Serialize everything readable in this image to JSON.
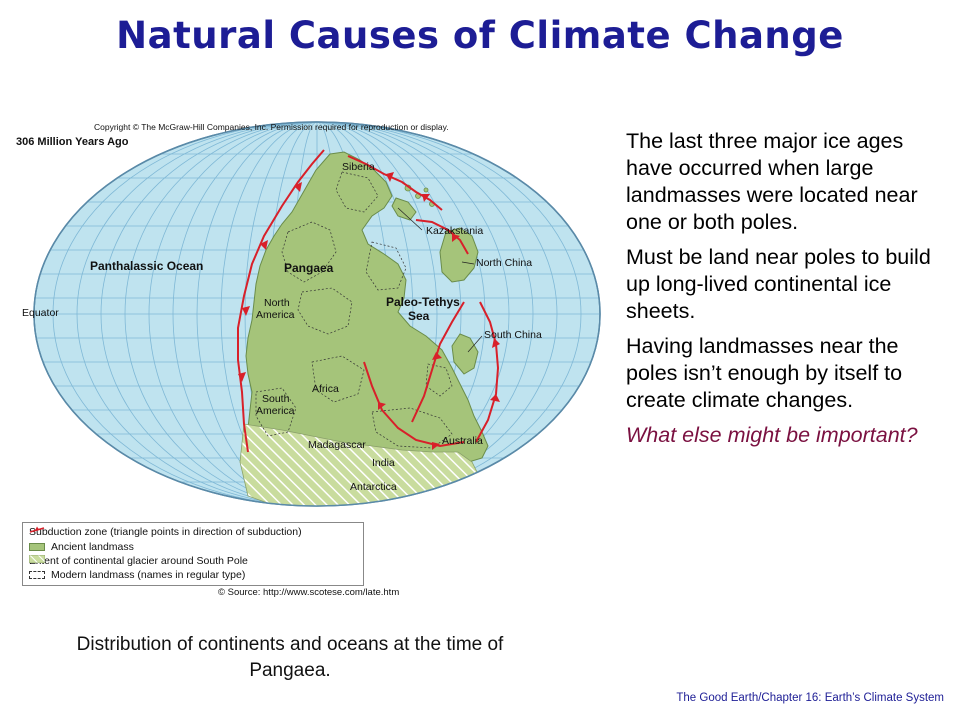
{
  "slide": {
    "title": "Natural Causes of Climate Change",
    "caption": "Distribution of continents and oceans at the time of Pangaea.",
    "footer": "The Good Earth/Chapter 16: Earth’s Climate System"
  },
  "bullets": [
    "The last three major ice ages have occurred when large landmasses were located near one or both poles.",
    "Must be land near poles to build up long-lived continental ice sheets.",
    "Having landmasses near the poles isn’t enough by itself to create climate changes.",
    "What else might be important?"
  ],
  "map": {
    "copyright": "Copyright © The McGraw-Hill Companies, Inc. Permission required for reproduction or display.",
    "age": "306 Million Years Ago",
    "labels": {
      "siberia": "Siberia",
      "kazakstania": "Kazakstania",
      "north_china": "North China",
      "panthalassic": "Panthalassic Ocean",
      "pangaea": "Pangaea",
      "paleo_tethys_1": "Paleo-Tethys",
      "paleo_tethys_2": "Sea",
      "equator": "Equator",
      "north_america_1": "North",
      "north_america_2": "America",
      "south_china": "South China",
      "africa": "Africa",
      "south_america_1": "South",
      "south_america_2": "America",
      "madagascar": "Madagascar",
      "india": "India",
      "australia": "Australia",
      "antarctica": "Antarctica"
    },
    "legend": [
      "Subduction zone (triangle points in direction of subduction)",
      "Ancient landmass",
      "Extent of continental glacier around South Pole",
      "Modern landmass (names in regular type)"
    ],
    "source": "© Source: http://www.scotese.com/late.htm",
    "colors": {
      "ocean": "#bfe3ef",
      "land": "#a5c47a",
      "subduction": "#d8202a",
      "grid": "#7fb8d6"
    }
  }
}
